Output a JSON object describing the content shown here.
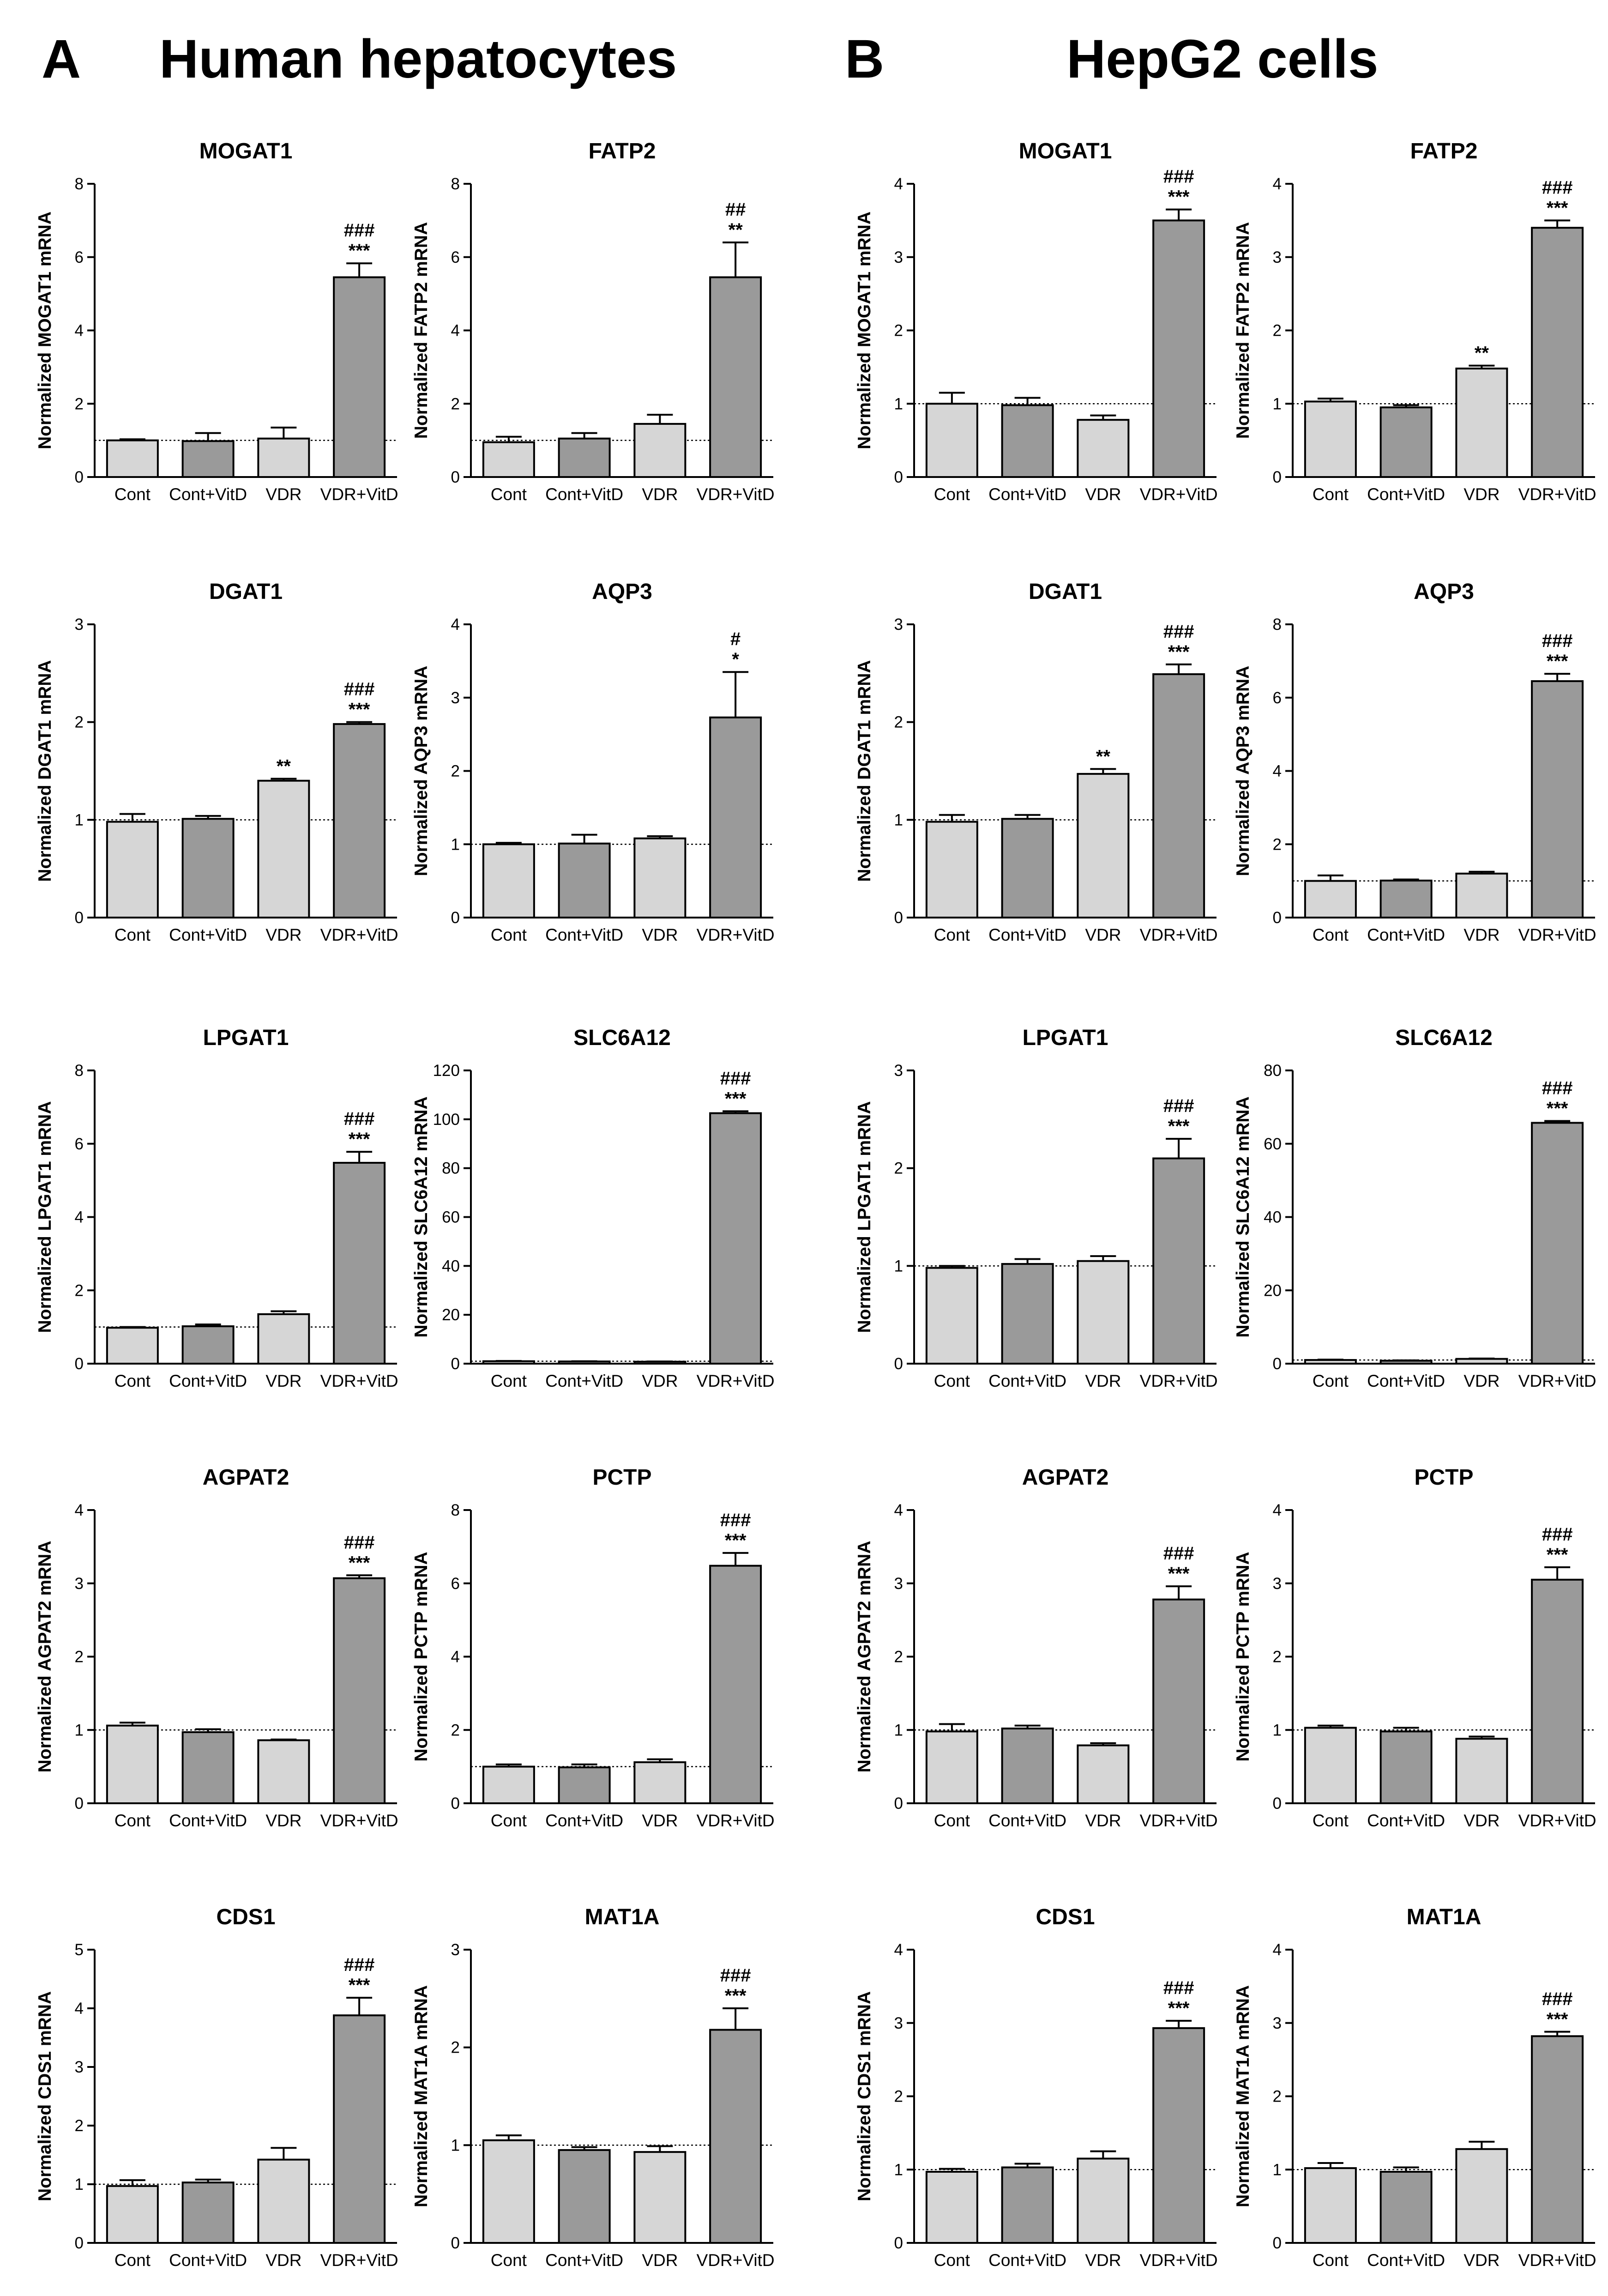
{
  "panels": [
    {
      "letter": "A",
      "title": "Human hepatocytes"
    },
    {
      "letter": "B",
      "title": "HepG2 cells"
    }
  ],
  "colors": {
    "light_bar": "#d6d6d6",
    "dark_bar": "#9a9a9a",
    "axis": "#000000"
  },
  "chart_data": [
    {
      "type": "bar",
      "panel": "A",
      "title": "MOGAT1",
      "ylabel": "Normalized MOGAT1 mRNA",
      "ylim": [
        0,
        8
      ],
      "yticks": [
        0,
        2,
        4,
        6,
        8
      ],
      "categories": [
        "Cont",
        "Cont+VitD",
        "VDR",
        "VDR+VitD"
      ],
      "values": [
        1.0,
        0.98,
        1.05,
        5.45
      ],
      "errors": [
        0.03,
        0.22,
        0.3,
        0.38
      ],
      "sig": [
        "",
        "",
        "",
        ""
      ],
      "sig2": [
        "",
        "",
        "",
        "###"
      ],
      "sig1": [
        "",
        "",
        "",
        "***"
      ],
      "reference": 1
    },
    {
      "type": "bar",
      "panel": "A",
      "title": "FATP2",
      "ylabel": "Normalized FATP2 mRNA",
      "ylim": [
        0,
        8
      ],
      "yticks": [
        0,
        2,
        4,
        6,
        8
      ],
      "categories": [
        "Cont",
        "Cont+VitD",
        "VDR",
        "VDR+VitD"
      ],
      "values": [
        0.95,
        1.05,
        1.45,
        5.45
      ],
      "errors": [
        0.15,
        0.15,
        0.25,
        0.95
      ],
      "sig2": [
        "",
        "",
        "",
        "##"
      ],
      "sig1": [
        "",
        "",
        "",
        "**"
      ],
      "reference": 1
    },
    {
      "type": "bar",
      "panel": "B",
      "title": "MOGAT1",
      "ylabel": "Normalized MOGAT1 mRNA",
      "ylim": [
        0,
        4
      ],
      "yticks": [
        0,
        1,
        2,
        3,
        4
      ],
      "categories": [
        "Cont",
        "Cont+VitD",
        "VDR",
        "VDR+VitD"
      ],
      "values": [
        1.0,
        0.98,
        0.78,
        3.5
      ],
      "errors": [
        0.15,
        0.1,
        0.06,
        0.15
      ],
      "sig2": [
        "",
        "",
        "",
        "###"
      ],
      "sig1": [
        "",
        "",
        "",
        "***"
      ],
      "reference": 1
    },
    {
      "type": "bar",
      "panel": "B",
      "title": "FATP2",
      "ylabel": "Normalized FATP2 mRNA",
      "ylim": [
        0,
        4
      ],
      "yticks": [
        0,
        1,
        2,
        3,
        4
      ],
      "categories": [
        "Cont",
        "Cont+VitD",
        "VDR",
        "VDR+VitD"
      ],
      "values": [
        1.03,
        0.95,
        1.48,
        3.4
      ],
      "errors": [
        0.04,
        0.03,
        0.04,
        0.1
      ],
      "sig2": [
        "",
        "",
        "",
        "###"
      ],
      "sig1": [
        "",
        "",
        "**",
        "***"
      ],
      "reference": 1
    },
    {
      "type": "bar",
      "panel": "A",
      "title": "DGAT1",
      "ylabel": "Normalized DGAT1 mRNA",
      "ylim": [
        0,
        3
      ],
      "yticks": [
        0,
        1,
        2,
        3
      ],
      "categories": [
        "Cont",
        "Cont+VitD",
        "VDR",
        "VDR+VitD"
      ],
      "values": [
        0.98,
        1.01,
        1.4,
        1.98
      ],
      "errors": [
        0.08,
        0.03,
        0.02,
        0.02
      ],
      "sig2": [
        "",
        "",
        "",
        "###"
      ],
      "sig1": [
        "",
        "",
        "**",
        "***"
      ],
      "reference": 1
    },
    {
      "type": "bar",
      "panel": "A",
      "title": "AQP3",
      "ylabel": "Normalized AQP3 mRNA",
      "ylim": [
        0,
        4
      ],
      "yticks": [
        0,
        1,
        2,
        3,
        4
      ],
      "categories": [
        "Cont",
        "Cont+VitD",
        "VDR",
        "VDR+VitD"
      ],
      "values": [
        1.0,
        1.01,
        1.08,
        2.73
      ],
      "errors": [
        0.02,
        0.12,
        0.03,
        0.62
      ],
      "sig2": [
        "",
        "",
        "",
        "#"
      ],
      "sig1": [
        "",
        "",
        "",
        "*"
      ],
      "reference": 1
    },
    {
      "type": "bar",
      "panel": "B",
      "title": "DGAT1",
      "ylabel": "Normalized DGAT1 mRNA",
      "ylim": [
        0,
        3
      ],
      "yticks": [
        0,
        1,
        2,
        3
      ],
      "categories": [
        "Cont",
        "Cont+VitD",
        "VDR",
        "VDR+VitD"
      ],
      "values": [
        0.98,
        1.01,
        1.47,
        2.49
      ],
      "errors": [
        0.07,
        0.04,
        0.05,
        0.1
      ],
      "sig2": [
        "",
        "",
        "",
        "###"
      ],
      "sig1": [
        "",
        "",
        "**",
        "***"
      ],
      "reference": 1
    },
    {
      "type": "bar",
      "panel": "B",
      "title": "AQP3",
      "ylabel": "Normalized AQP3 mRNA",
      "ylim": [
        0,
        8
      ],
      "yticks": [
        0,
        2,
        4,
        6,
        8
      ],
      "categories": [
        "Cont",
        "Cont+VitD",
        "VDR",
        "VDR+VitD"
      ],
      "values": [
        1.0,
        1.01,
        1.2,
        6.45
      ],
      "errors": [
        0.15,
        0.03,
        0.05,
        0.2
      ],
      "sig2": [
        "",
        "",
        "",
        "###"
      ],
      "sig1": [
        "",
        "",
        "",
        "***"
      ],
      "reference": 1
    },
    {
      "type": "bar",
      "panel": "A",
      "title": "LPGAT1",
      "ylabel": "Normalized LPGAT1 mRNA",
      "ylim": [
        0,
        8
      ],
      "yticks": [
        0,
        2,
        4,
        6,
        8
      ],
      "categories": [
        "Cont",
        "Cont+VitD",
        "VDR",
        "VDR+VitD"
      ],
      "values": [
        0.98,
        1.02,
        1.35,
        5.48
      ],
      "errors": [
        0.02,
        0.05,
        0.08,
        0.3
      ],
      "sig2": [
        "",
        "",
        "",
        "###"
      ],
      "sig1": [
        "",
        "",
        "",
        "***"
      ],
      "reference": 1
    },
    {
      "type": "bar",
      "panel": "A",
      "title": "SLC6A12",
      "ylabel": "Normalized SLC6A12 mRNA",
      "ylim": [
        0,
        120
      ],
      "yticks": [
        0,
        20,
        40,
        60,
        80,
        100,
        120
      ],
      "categories": [
        "Cont",
        "Cont+VitD",
        "VDR",
        "VDR+VitD"
      ],
      "values": [
        1.0,
        0.9,
        0.8,
        102.5
      ],
      "errors": [
        0.1,
        0.1,
        0.1,
        0.8
      ],
      "sig2": [
        "",
        "",
        "",
        "###"
      ],
      "sig1": [
        "",
        "",
        "",
        "***"
      ],
      "reference": 1
    },
    {
      "type": "bar",
      "panel": "B",
      "title": "LPGAT1",
      "ylabel": "Normalized LPGAT1 mRNA",
      "ylim": [
        0,
        3
      ],
      "yticks": [
        0,
        1,
        2,
        3
      ],
      "categories": [
        "Cont",
        "Cont+VitD",
        "VDR",
        "VDR+VitD"
      ],
      "values": [
        0.98,
        1.02,
        1.05,
        2.1
      ],
      "errors": [
        0.02,
        0.05,
        0.05,
        0.2
      ],
      "sig2": [
        "",
        "",
        "",
        "###"
      ],
      "sig1": [
        "",
        "",
        "",
        "***"
      ],
      "reference": 1
    },
    {
      "type": "bar",
      "panel": "B",
      "title": "SLC6A12",
      "ylabel": "Normalized SLC6A12 mRNA",
      "ylim": [
        0,
        80
      ],
      "yticks": [
        0,
        20,
        40,
        60,
        80
      ],
      "categories": [
        "Cont",
        "Cont+VitD",
        "VDR",
        "VDR+VitD"
      ],
      "values": [
        1.0,
        0.8,
        1.3,
        65.7
      ],
      "errors": [
        0.1,
        0.1,
        0.1,
        0.5
      ],
      "sig2": [
        "",
        "",
        "",
        "###"
      ],
      "sig1": [
        "",
        "",
        "",
        "***"
      ],
      "reference": 1
    },
    {
      "type": "bar",
      "panel": "A",
      "title": "AGPAT2",
      "ylabel": "Normalized AGPAT2 mRNA",
      "ylim": [
        0,
        4
      ],
      "yticks": [
        0,
        1,
        2,
        3,
        4
      ],
      "categories": [
        "Cont",
        "Cont+VitD",
        "VDR",
        "VDR+VitD"
      ],
      "values": [
        1.06,
        0.97,
        0.86,
        3.07
      ],
      "errors": [
        0.04,
        0.04,
        0.01,
        0.04
      ],
      "sig2": [
        "",
        "",
        "",
        "###"
      ],
      "sig1": [
        "",
        "",
        "",
        "***"
      ],
      "reference": 1
    },
    {
      "type": "bar",
      "panel": "A",
      "title": "PCTP",
      "ylabel": "Normalized PCTP mRNA",
      "ylim": [
        0,
        8
      ],
      "yticks": [
        0,
        2,
        4,
        6,
        8
      ],
      "categories": [
        "Cont",
        "Cont+VitD",
        "VDR",
        "VDR+VitD"
      ],
      "values": [
        1.0,
        0.98,
        1.12,
        6.48
      ],
      "errors": [
        0.06,
        0.08,
        0.08,
        0.35
      ],
      "sig2": [
        "",
        "",
        "",
        "###"
      ],
      "sig1": [
        "",
        "",
        "",
        "***"
      ],
      "reference": 1
    },
    {
      "type": "bar",
      "panel": "B",
      "title": "AGPAT2",
      "ylabel": "Normalized AGPAT2 mRNA",
      "ylim": [
        0,
        4
      ],
      "yticks": [
        0,
        1,
        2,
        3,
        4
      ],
      "categories": [
        "Cont",
        "Cont+VitD",
        "VDR",
        "VDR+VitD"
      ],
      "values": [
        0.98,
        1.02,
        0.79,
        2.78
      ],
      "errors": [
        0.1,
        0.04,
        0.03,
        0.18
      ],
      "sig2": [
        "",
        "",
        "",
        "###"
      ],
      "sig1": [
        "",
        "",
        "",
        "***"
      ],
      "reference": 1
    },
    {
      "type": "bar",
      "panel": "B",
      "title": "PCTP",
      "ylabel": "Normalized PCTP mRNA",
      "ylim": [
        0,
        4
      ],
      "yticks": [
        0,
        1,
        2,
        3,
        4
      ],
      "categories": [
        "Cont",
        "Cont+VitD",
        "VDR",
        "VDR+VitD"
      ],
      "values": [
        1.03,
        0.98,
        0.88,
        3.05
      ],
      "errors": [
        0.03,
        0.05,
        0.03,
        0.17
      ],
      "sig2": [
        "",
        "",
        "",
        "###"
      ],
      "sig1": [
        "",
        "",
        "",
        "***"
      ],
      "reference": 1
    },
    {
      "type": "bar",
      "panel": "A",
      "title": "CDS1",
      "ylabel": "Normalized CDS1 mRNA",
      "ylim": [
        0,
        5
      ],
      "yticks": [
        0,
        1,
        2,
        3,
        4,
        5
      ],
      "categories": [
        "Cont",
        "Cont+VitD",
        "VDR",
        "VDR+VitD"
      ],
      "values": [
        0.97,
        1.03,
        1.42,
        3.88
      ],
      "errors": [
        0.1,
        0.05,
        0.2,
        0.3
      ],
      "sig2": [
        "",
        "",
        "",
        "###"
      ],
      "sig1": [
        "",
        "",
        "",
        "***"
      ],
      "reference": 1
    },
    {
      "type": "bar",
      "panel": "A",
      "title": "MAT1A",
      "ylabel": "Normalized MAT1A mRNA",
      "ylim": [
        0,
        3
      ],
      "yticks": [
        0,
        1,
        2,
        3
      ],
      "categories": [
        "Cont",
        "Cont+VitD",
        "VDR",
        "VDR+VitD"
      ],
      "values": [
        1.05,
        0.95,
        0.93,
        2.18
      ],
      "errors": [
        0.05,
        0.03,
        0.06,
        0.22
      ],
      "sig2": [
        "",
        "",
        "",
        "###"
      ],
      "sig1": [
        "",
        "",
        "",
        "***"
      ],
      "reference": 1
    },
    {
      "type": "bar",
      "panel": "B",
      "title": "CDS1",
      "ylabel": "Normalized CDS1 mRNA",
      "ylim": [
        0,
        4
      ],
      "yticks": [
        0,
        1,
        2,
        3,
        4
      ],
      "categories": [
        "Cont",
        "Cont+VitD",
        "VDR",
        "VDR+VitD"
      ],
      "values": [
        0.97,
        1.03,
        1.15,
        2.93
      ],
      "errors": [
        0.04,
        0.05,
        0.1,
        0.1
      ],
      "sig2": [
        "",
        "",
        "",
        "###"
      ],
      "sig1": [
        "",
        "",
        "",
        "***"
      ],
      "reference": 1
    },
    {
      "type": "bar",
      "panel": "B",
      "title": "MAT1A",
      "ylabel": "Normalized MAT1A mRNA",
      "ylim": [
        0,
        4
      ],
      "yticks": [
        0,
        1,
        2,
        3,
        4
      ],
      "categories": [
        "Cont",
        "Cont+VitD",
        "VDR",
        "VDR+VitD"
      ],
      "values": [
        1.02,
        0.97,
        1.28,
        2.82
      ],
      "errors": [
        0.07,
        0.06,
        0.1,
        0.06
      ],
      "sig2": [
        "",
        "",
        "",
        "###"
      ],
      "sig1": [
        "",
        "",
        "",
        "***"
      ],
      "reference": 1
    }
  ]
}
